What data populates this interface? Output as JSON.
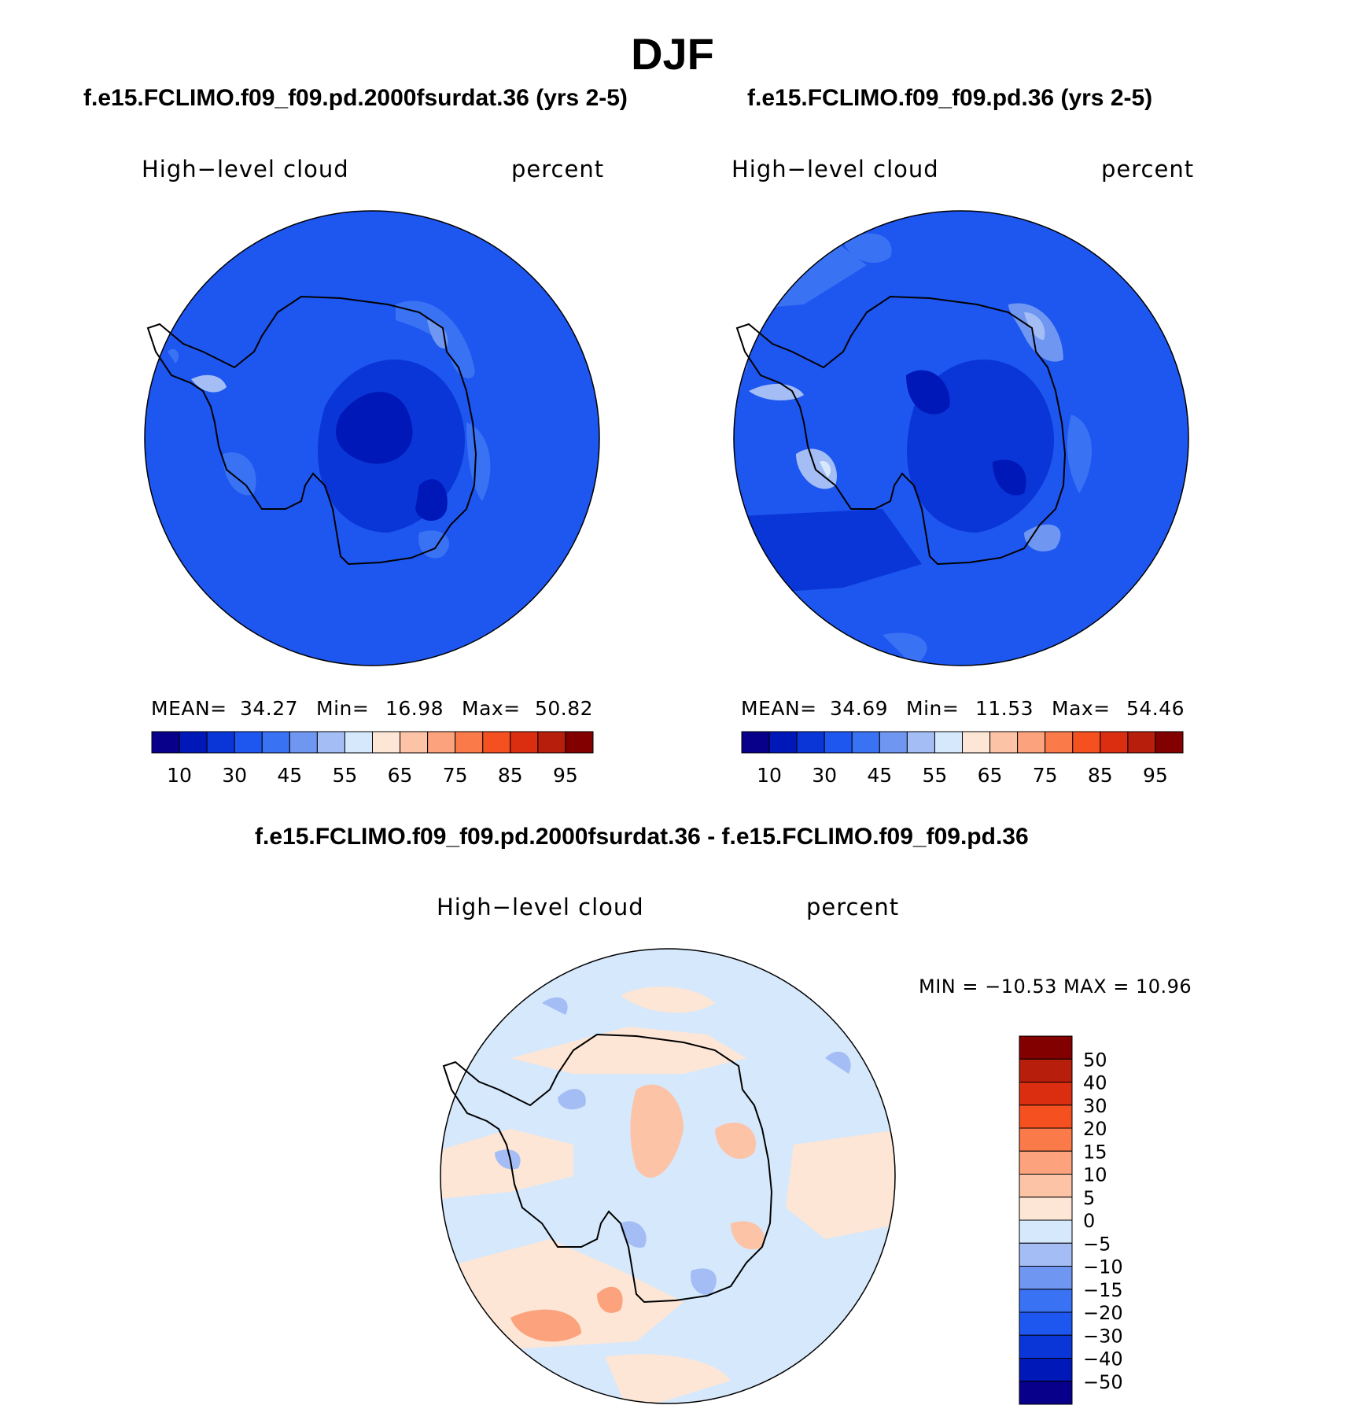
{
  "title": "DJF",
  "variable": "High−level cloud",
  "units": "percent",
  "panels": [
    {
      "case_title": "f.e15.FCLIMO.f09_f09.pd.2000fsurdat.36 (yrs 2-5)",
      "stats": {
        "mean_label": "MEAN=",
        "mean": "34.27",
        "min_label": "Min=",
        "min": "16.98",
        "max_label": "Max=",
        "max": "50.82"
      }
    },
    {
      "case_title": "f.e15.FCLIMO.f09_f09.pd.36 (yrs 2-5)",
      "stats": {
        "mean_label": "MEAN=",
        "mean": "34.69",
        "min_label": "Min=",
        "min": "11.53",
        "max_label": "Max=",
        "max": "54.46"
      }
    }
  ],
  "diff": {
    "title": "f.e15.FCLIMO.f09_f09.pd.2000fsurdat.36 - f.e15.FCLIMO.f09_f09.pd.36",
    "range_text": "MIN = −10.53 MAX =   10.96"
  },
  "colorbar_abs": {
    "colors": [
      "#08008a",
      "#0018b8",
      "#0a36d8",
      "#1e56f0",
      "#3a72f4",
      "#6f97f2",
      "#a4bef5",
      "#d6e8fb",
      "#fde6d6",
      "#fcc3a6",
      "#fca27d",
      "#fa7a4a",
      "#f5501f",
      "#db2e10",
      "#b71e0c",
      "#820000"
    ],
    "labels": [
      "10",
      "30",
      "45",
      "55",
      "65",
      "75",
      "85",
      "95"
    ]
  },
  "colorbar_diff": {
    "colors": [
      "#820000",
      "#b71e0c",
      "#db2e10",
      "#f5501f",
      "#fa7a4a",
      "#fca27d",
      "#fcc3a6",
      "#fde6d6",
      "#d6e8fb",
      "#a4bef5",
      "#6f97f2",
      "#3a72f4",
      "#1e56f0",
      "#0a36d8",
      "#0018b8",
      "#08008a"
    ],
    "labels": [
      "50",
      "40",
      "30",
      "20",
      "15",
      "10",
      "5",
      "0",
      "−5",
      "−10",
      "−15",
      "−20",
      "−30",
      "−40",
      "−50"
    ]
  }
}
